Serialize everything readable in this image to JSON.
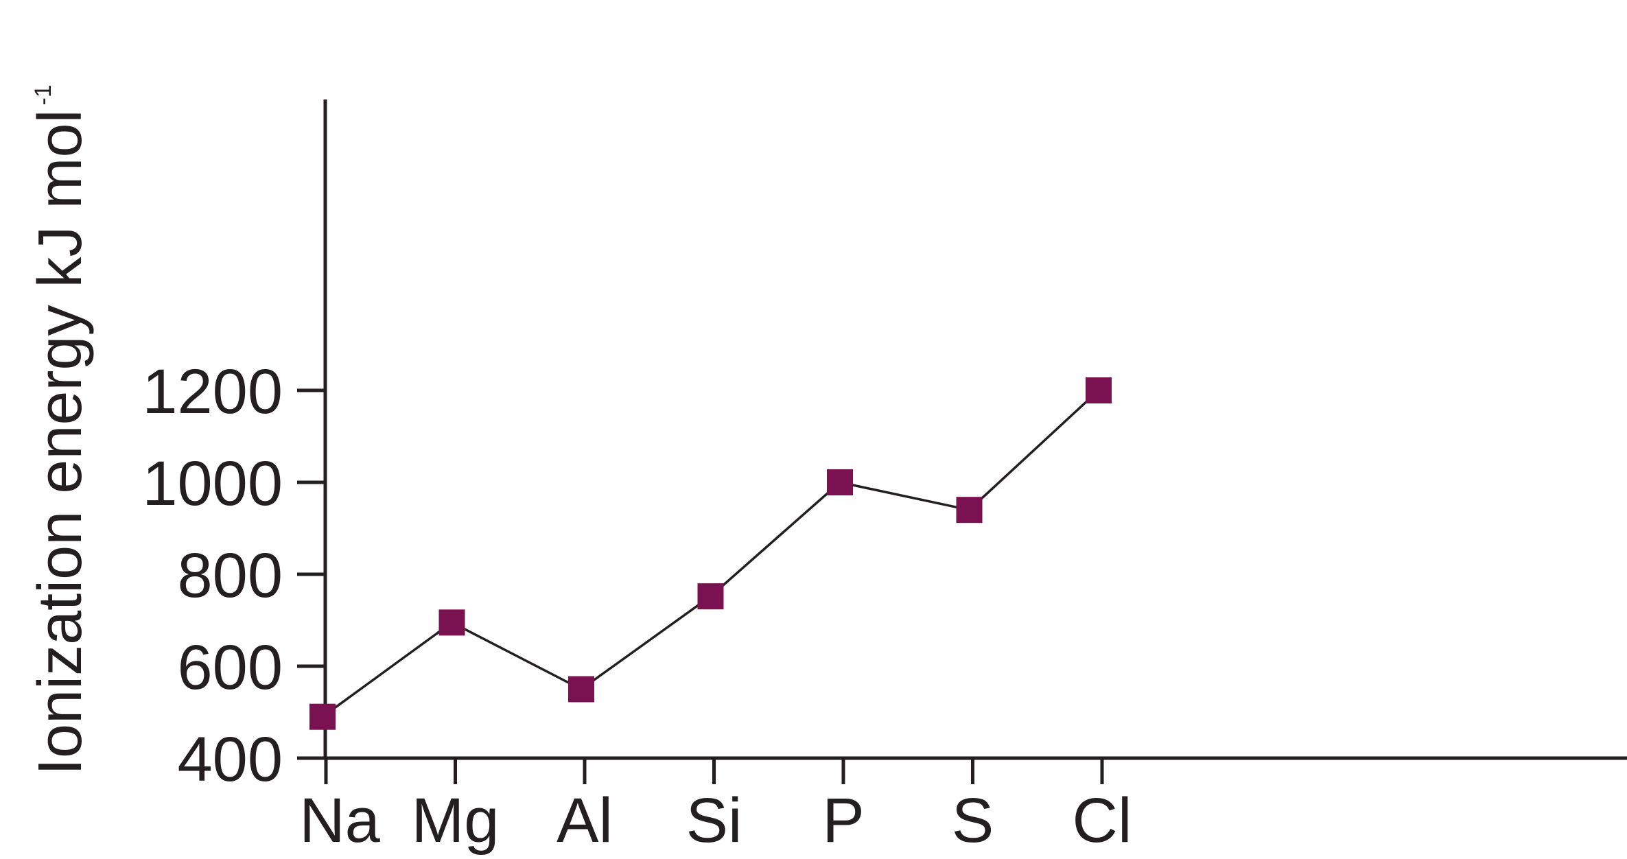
{
  "chart_data": {
    "type": "line",
    "title": "",
    "xlabel": "",
    "ylabel": "Ionization energy kJ mol",
    "ylabel_superscript": "-1",
    "categories": [
      "Na",
      "Mg",
      "Al",
      "Si",
      "P",
      "S",
      "Cl"
    ],
    "series": [
      {
        "values": [
          490,
          695,
          550,
          752,
          1000,
          940,
          1200
        ]
      }
    ],
    "ylim": [
      400,
      1200
    ],
    "yticks": [
      400,
      600,
      800,
      1000,
      1200
    ],
    "ytick_labels": [
      "400",
      "600",
      "800",
      "1000",
      "1200"
    ],
    "grid": false,
    "legend": "none",
    "marker": "square",
    "colors": {
      "marker": "#7a1150",
      "line": "#231f20",
      "axis": "#231f20",
      "text": "#231f20"
    }
  }
}
